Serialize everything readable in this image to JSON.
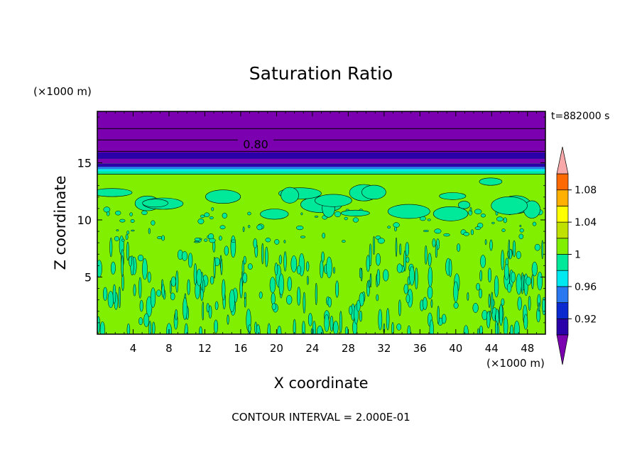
{
  "chart_data": {
    "type": "heatmap",
    "title": "Saturation Ratio",
    "xlabel": "X coordinate",
    "ylabel": "Z coordinate",
    "x_unit": "(×1000 m)",
    "y_unit": "(×1000 m)",
    "time_label": "t=882000 s",
    "footer": "CONTOUR INTERVAL = 2.000E-01",
    "xlim": [
      0,
      50
    ],
    "ylim": [
      0,
      19.5
    ],
    "x_ticks": [
      4,
      8,
      12,
      16,
      20,
      24,
      28,
      32,
      36,
      40,
      44,
      48
    ],
    "y_ticks": [
      5,
      10,
      15
    ],
    "contour_label": "0.80",
    "colorbar": {
      "levels": [
        0.9,
        0.92,
        0.94,
        0.96,
        0.98,
        1.0,
        1.02,
        1.04,
        1.06,
        1.08,
        1.1
      ],
      "tick_labels": [
        "0.92",
        "0.96",
        "1",
        "1.04",
        "1.08"
      ],
      "tick_values": [
        0.92,
        0.96,
        1.0,
        1.04,
        1.08
      ],
      "colors": [
        "#7a00b0",
        "#2a00a8",
        "#0a2ad0",
        "#2a78f0",
        "#00e8f0",
        "#00e89a",
        "#80f000",
        "#c0e000",
        "#ffff00",
        "#ffb000",
        "#ff6a00",
        "#ff2020"
      ],
      "under_color": "#7a00b0",
      "over_color": "#f8a8a8"
    },
    "regions": {
      "upper_dry_layer": {
        "z_bottom": 14.3,
        "z_top": 19.5,
        "value": "0.80"
      },
      "cloud_top_z": 14.0,
      "turbulent_boundary_layer_top_z": 8.0
    }
  }
}
